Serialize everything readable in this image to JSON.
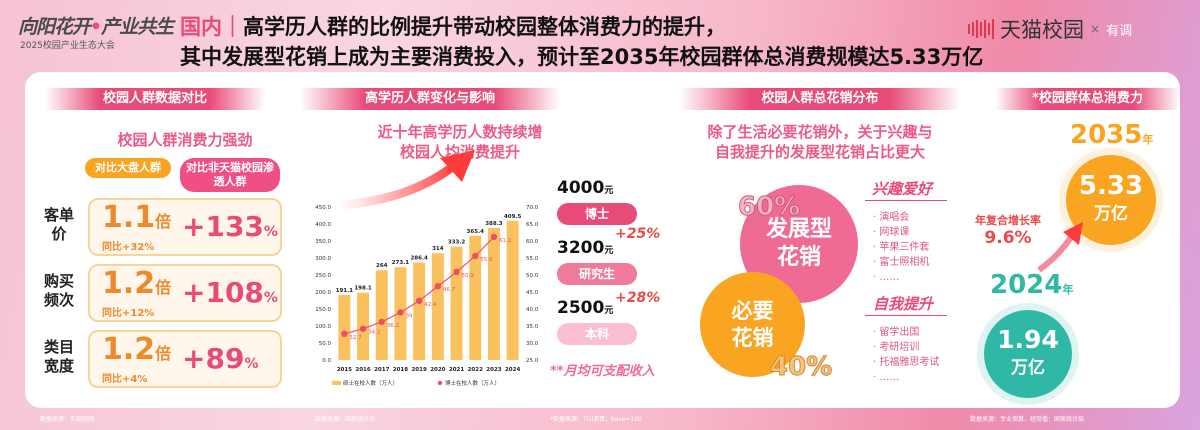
{
  "header": {
    "logo_main_a": "向阳花开",
    "logo_main_b": "产业共生",
    "logo_sub": "2025校园产业生态大会",
    "title_prefix": "国内｜",
    "title_line1": "高学历人群的比例提升带动校园整体消费力的提升，",
    "title_line2": "其中发展型花销上成为主要消费投入，预计至2035年校园群体总消费规模达5.33万亿",
    "brand": "天猫校园",
    "times": "×",
    "partner": "有调",
    "brand_color": "#e0364f",
    "accent": "#e94b78"
  },
  "section1": {
    "header": "校园人群数据对比",
    "subtitle": "校园人群消费力强劲",
    "col1": "对比大盘人群",
    "col2": "对比非天猫校园渗透人群",
    "rows": [
      {
        "label": "客单价",
        "mult": "1.1",
        "unit": "倍",
        "yoy": "同比+32%",
        "pct": "+133",
        "pct_unit": "%"
      },
      {
        "label": "购买频次",
        "mult": "1.2",
        "unit": "倍",
        "yoy": "同比+12%",
        "pct": "+108",
        "pct_unit": "%"
      },
      {
        "label": "类目宽度",
        "mult": "1.2",
        "unit": "倍",
        "yoy": "同比+4%",
        "pct": "+89",
        "pct_unit": "%"
      }
    ],
    "footnote": "数据来源：天猫校园"
  },
  "section2": {
    "header": "高学历人群变化与影响",
    "subtitle1": "近十年高学历人数持续增",
    "subtitle2": "校园人均消费提升",
    "incomes": [
      {
        "amount": "4000",
        "unit": "元",
        "tag": "博士",
        "color": "#e94b78"
      },
      {
        "amount": "3200",
        "unit": "元",
        "tag": "研究生",
        "color": "#f07a9a"
      },
      {
        "amount": "2500",
        "unit": "元",
        "tag": "本科",
        "color": "#f9bfd0"
      }
    ],
    "increases": [
      "+25%",
      "+28%"
    ],
    "note": "**月均可支配收入",
    "footnote": "数据来源：国家统计局"
  },
  "chart_data": {
    "type": "bar+line",
    "categories": [
      "2015",
      "2016",
      "2017",
      "2018",
      "2019",
      "2020",
      "2021",
      "2022",
      "2023",
      "2024"
    ],
    "series": [
      {
        "name": "硕士在校人数（万人）",
        "type": "bar",
        "axis": "left",
        "color": "#f9c25e",
        "values": [
          191.1,
          198.1,
          264.0,
          273.1,
          286.4,
          314.0,
          333.2,
          365.4,
          388.3,
          409.5
        ]
      },
      {
        "name": "博士在校人数（万人）",
        "type": "line",
        "axis": "right",
        "color": "#ee5a78",
        "values": [
          32.7,
          34.2,
          36.2,
          39.0,
          42.4,
          46.7,
          50.9,
          55.6,
          61.2,
          null
        ]
      }
    ],
    "ylim_left": [
      0,
      450
    ],
    "yticks_left": [
      "0.0",
      "50.0",
      "100.0",
      "150.0",
      "200.0",
      "250.0",
      "300.0",
      "350.0",
      "400.0",
      "450.0"
    ],
    "ylim_right": [
      25,
      70
    ],
    "yticks_right": [
      "25.0",
      "30.0",
      "35.0",
      "40.0",
      "45.0",
      "50.0",
      "55.0",
      "60.0",
      "65.0",
      "70.0"
    ],
    "legend": "bottom",
    "grid": false
  },
  "section3": {
    "header": "校园人群总花销分布",
    "subtitle1": "除了生活必要花销外，关于兴趣与",
    "subtitle2": "自我提升的发展型花销占比更大",
    "dev": {
      "pct": "60%",
      "label1": "发展型",
      "label2": "花销",
      "color": "#f06b93"
    },
    "need": {
      "pct": "40%",
      "label1": "必要",
      "label2": "花销",
      "color": "#f9a521"
    },
    "cat1": {
      "title": "兴趣爱好",
      "items": [
        "演唱会",
        "网球课",
        "苹果三件套",
        "富士照相机",
        "……"
      ]
    },
    "cat2": {
      "title": "自我提升",
      "items": [
        "留学出国",
        "考研培训",
        "托福雅思考试",
        "……"
      ]
    },
    "footnote": "*数据来源：TGI测算，base=100"
  },
  "section4": {
    "header": "*校园群体总消费力",
    "y2035": "2035",
    "y2024": "2024",
    "year_unit": "年",
    "v2035": "5.33",
    "v2024": "1.94",
    "unit": "万亿",
    "cagr_label": "年复合增长率",
    "cagr": "9.6%",
    "color_2035": "#f9a521",
    "color_2024": "#2fb8a6",
    "footnote": "数据来源：专业测算，经验值：国家统计局"
  }
}
